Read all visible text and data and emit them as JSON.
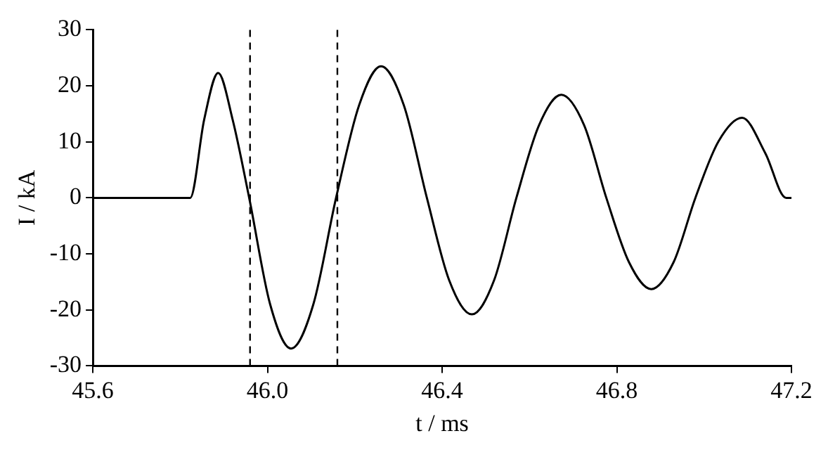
{
  "chart_data": {
    "type": "line",
    "xlabel": "t / ms",
    "ylabel": "I / kA",
    "xlim": [
      45.6,
      47.2
    ],
    "xticks": [
      {
        "value": 45.6,
        "label": "45.6"
      },
      {
        "value": 46,
        "label": "46.0"
      },
      {
        "value": 46.4,
        "label": "46.4"
      },
      {
        "value": 46.8,
        "label": "46.8"
      },
      {
        "value": 47.2,
        "label": "47.2"
      }
    ],
    "ylim": [
      -30,
      30
    ],
    "yticks": [
      -30,
      -20,
      -10,
      0,
      10,
      20,
      30
    ],
    "grid": false,
    "legend": false,
    "marker": "none",
    "line_style": "solid",
    "series": [
      {
        "color": "#000000",
        "x": [
          45.6,
          45.823,
          45.855,
          45.887,
          45.92,
          45.958,
          46.006,
          46.054,
          46.105,
          46.157,
          46.21,
          46.26,
          46.312,
          46.365,
          46.416,
          46.468,
          46.519,
          46.57,
          46.622,
          46.673,
          46.725,
          46.776,
          46.828,
          46.879,
          46.93,
          46.98,
          47.033,
          47.087,
          47.14,
          47.188,
          47.2
        ],
        "values": [
          0,
          0,
          14,
          22.3,
          14,
          0,
          -19,
          -26.9,
          -19,
          0,
          16.6,
          23.5,
          16.6,
          0,
          -14.7,
          -20.8,
          -14.7,
          0,
          13,
          18.4,
          13,
          0,
          -11.5,
          -16.3,
          -11.5,
          0,
          10.1,
          14.3,
          8,
          0,
          0
        ]
      }
    ],
    "ref_lines": [
      {
        "axis": "x",
        "value": 45.96,
        "color": "#000000",
        "line_style": "dashed"
      },
      {
        "axis": "x",
        "value": 46.16,
        "color": "#000000",
        "line_style": "dashed"
      }
    ]
  }
}
